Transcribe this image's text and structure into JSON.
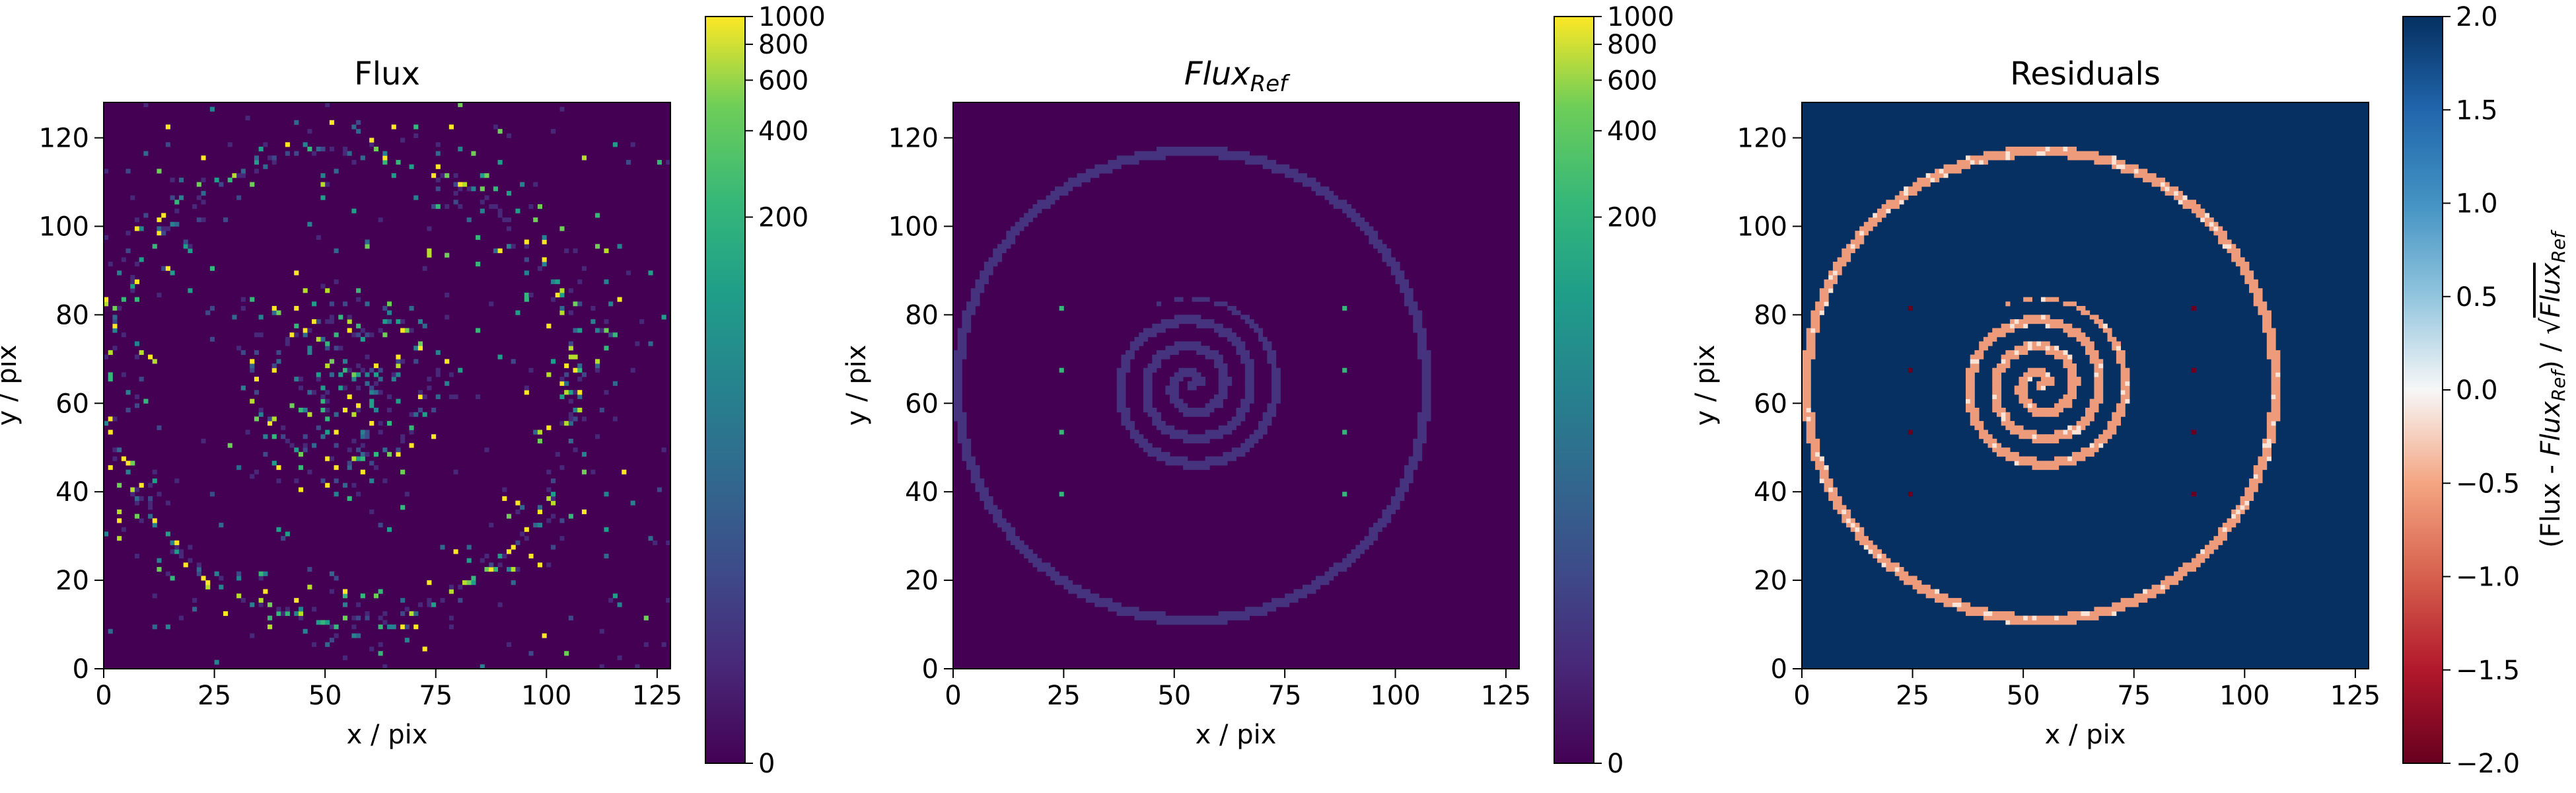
{
  "chart_data": [
    {
      "type": "heatmap",
      "title": "Flux",
      "xlabel": "x / pix",
      "ylabel": "y / pix",
      "xlim": [
        0,
        128
      ],
      "ylim": [
        0,
        128
      ],
      "x_ticks": [
        0,
        25,
        50,
        75,
        100,
        125
      ],
      "y_ticks": [
        0,
        20,
        40,
        60,
        80,
        100,
        120
      ],
      "colormap": "viridis",
      "color_scale": "asinh",
      "colorbar": {
        "range": [
          0,
          1000
        ],
        "ticks": [
          0,
          200,
          400,
          600,
          800,
          1000
        ],
        "label": ""
      },
      "features": [
        {
          "name": "outer ring",
          "center": [
            54,
            64
          ],
          "radius": 53
        },
        {
          "name": "central spiral",
          "center": [
            54,
            64
          ],
          "max_radius": 20
        },
        {
          "name": "point sources",
          "points": [
            [
              24,
              39
            ],
            [
              24,
              53
            ],
            [
              24,
              67
            ],
            [
              24,
              81
            ],
            [
              88,
              39
            ],
            [
              88,
              53
            ],
            [
              88,
              67
            ],
            [
              88,
              81
            ]
          ]
        }
      ],
      "background_level": 0,
      "appearance": "shot-noise realization of the reference image (sparse bright pixels)"
    },
    {
      "type": "heatmap",
      "title": "Flux",
      "title_subscript": "Ref",
      "xlabel": "x / pix",
      "ylabel": "y / pix",
      "xlim": [
        0,
        128
      ],
      "ylim": [
        0,
        128
      ],
      "x_ticks": [
        0,
        25,
        50,
        75,
        100,
        125
      ],
      "y_ticks": [
        0,
        20,
        40,
        60,
        80,
        100,
        120
      ],
      "colormap": "viridis",
      "color_scale": "asinh",
      "colorbar": {
        "range": [
          0,
          1000
        ],
        "ticks": [
          0,
          200,
          400,
          600,
          800,
          1000
        ],
        "label": ""
      },
      "features": [
        {
          "name": "outer ring",
          "center": [
            54,
            64
          ],
          "radius": 53
        },
        {
          "name": "central spiral",
          "center": [
            54,
            64
          ],
          "max_radius": 20
        },
        {
          "name": "point sources",
          "points": [
            [
              24,
              39
            ],
            [
              24,
              53
            ],
            [
              24,
              67
            ],
            [
              24,
              81
            ],
            [
              88,
              39
            ],
            [
              88,
              53
            ],
            [
              88,
              67
            ],
            [
              88,
              81
            ]
          ]
        }
      ],
      "background_level": 0
    },
    {
      "type": "heatmap",
      "title": "Residuals",
      "xlabel": "x / pix",
      "ylabel": "y / pix",
      "xlim": [
        0,
        128
      ],
      "ylim": [
        0,
        128
      ],
      "x_ticks": [
        0,
        25,
        50,
        75,
        100,
        125
      ],
      "y_ticks": [
        0,
        20,
        40,
        60,
        80,
        100,
        120
      ],
      "colormap": "RdBu",
      "colorbar": {
        "range": [
          -2.0,
          2.0
        ],
        "ticks": [
          -2.0,
          -1.5,
          -1.0,
          -0.5,
          0.0,
          0.5,
          1.0,
          1.5,
          2.0
        ],
        "tick_labels": [
          "−2.0",
          "−1.5",
          "−1.0",
          "−0.5",
          "0.0",
          "0.5",
          "1.0",
          "1.5",
          "2.0"
        ],
        "label": "(Flux - Flux_Ref) / √Flux_Ref"
      },
      "background_level": 2.0,
      "feature_level": -1.0,
      "point_source_level": -2.0
    }
  ],
  "text": {
    "x_tick_labels": [
      "0",
      "25",
      "50",
      "75",
      "100",
      "125"
    ],
    "y_tick_labels": [
      "0",
      "20",
      "40",
      "60",
      "80",
      "100",
      "120"
    ],
    "flux_cbar_labels": [
      "0",
      "200",
      "400",
      "600",
      "800",
      "1000"
    ],
    "resid_cbar_labels": [
      "−2.0",
      "−1.5",
      "−1.0",
      "−0.5",
      "0.0",
      "0.5",
      "1.0",
      "1.5",
      "2.0"
    ],
    "panel1_title": "Flux",
    "panel2_title_main": "Flux",
    "panel2_title_sub": "Ref",
    "panel3_title": "Residuals",
    "xlabel": "x / pix",
    "ylabel": "y / pix",
    "resid_cbar_label_prefix": "(Flux - ",
    "resid_cbar_label_flux": "Flux",
    "resid_cbar_label_sub": "Ref",
    "resid_cbar_label_mid": ") / √",
    "resid_cbar_label_flux2": "Flux",
    "resid_cbar_label_sub2": "Ref"
  },
  "colors": {
    "viridis_low": "#440154",
    "viridis_high": "#fde725",
    "rdbu_low": "#67001f",
    "rdbu_mid": "#f7f7f7",
    "rdbu_high": "#053061"
  }
}
